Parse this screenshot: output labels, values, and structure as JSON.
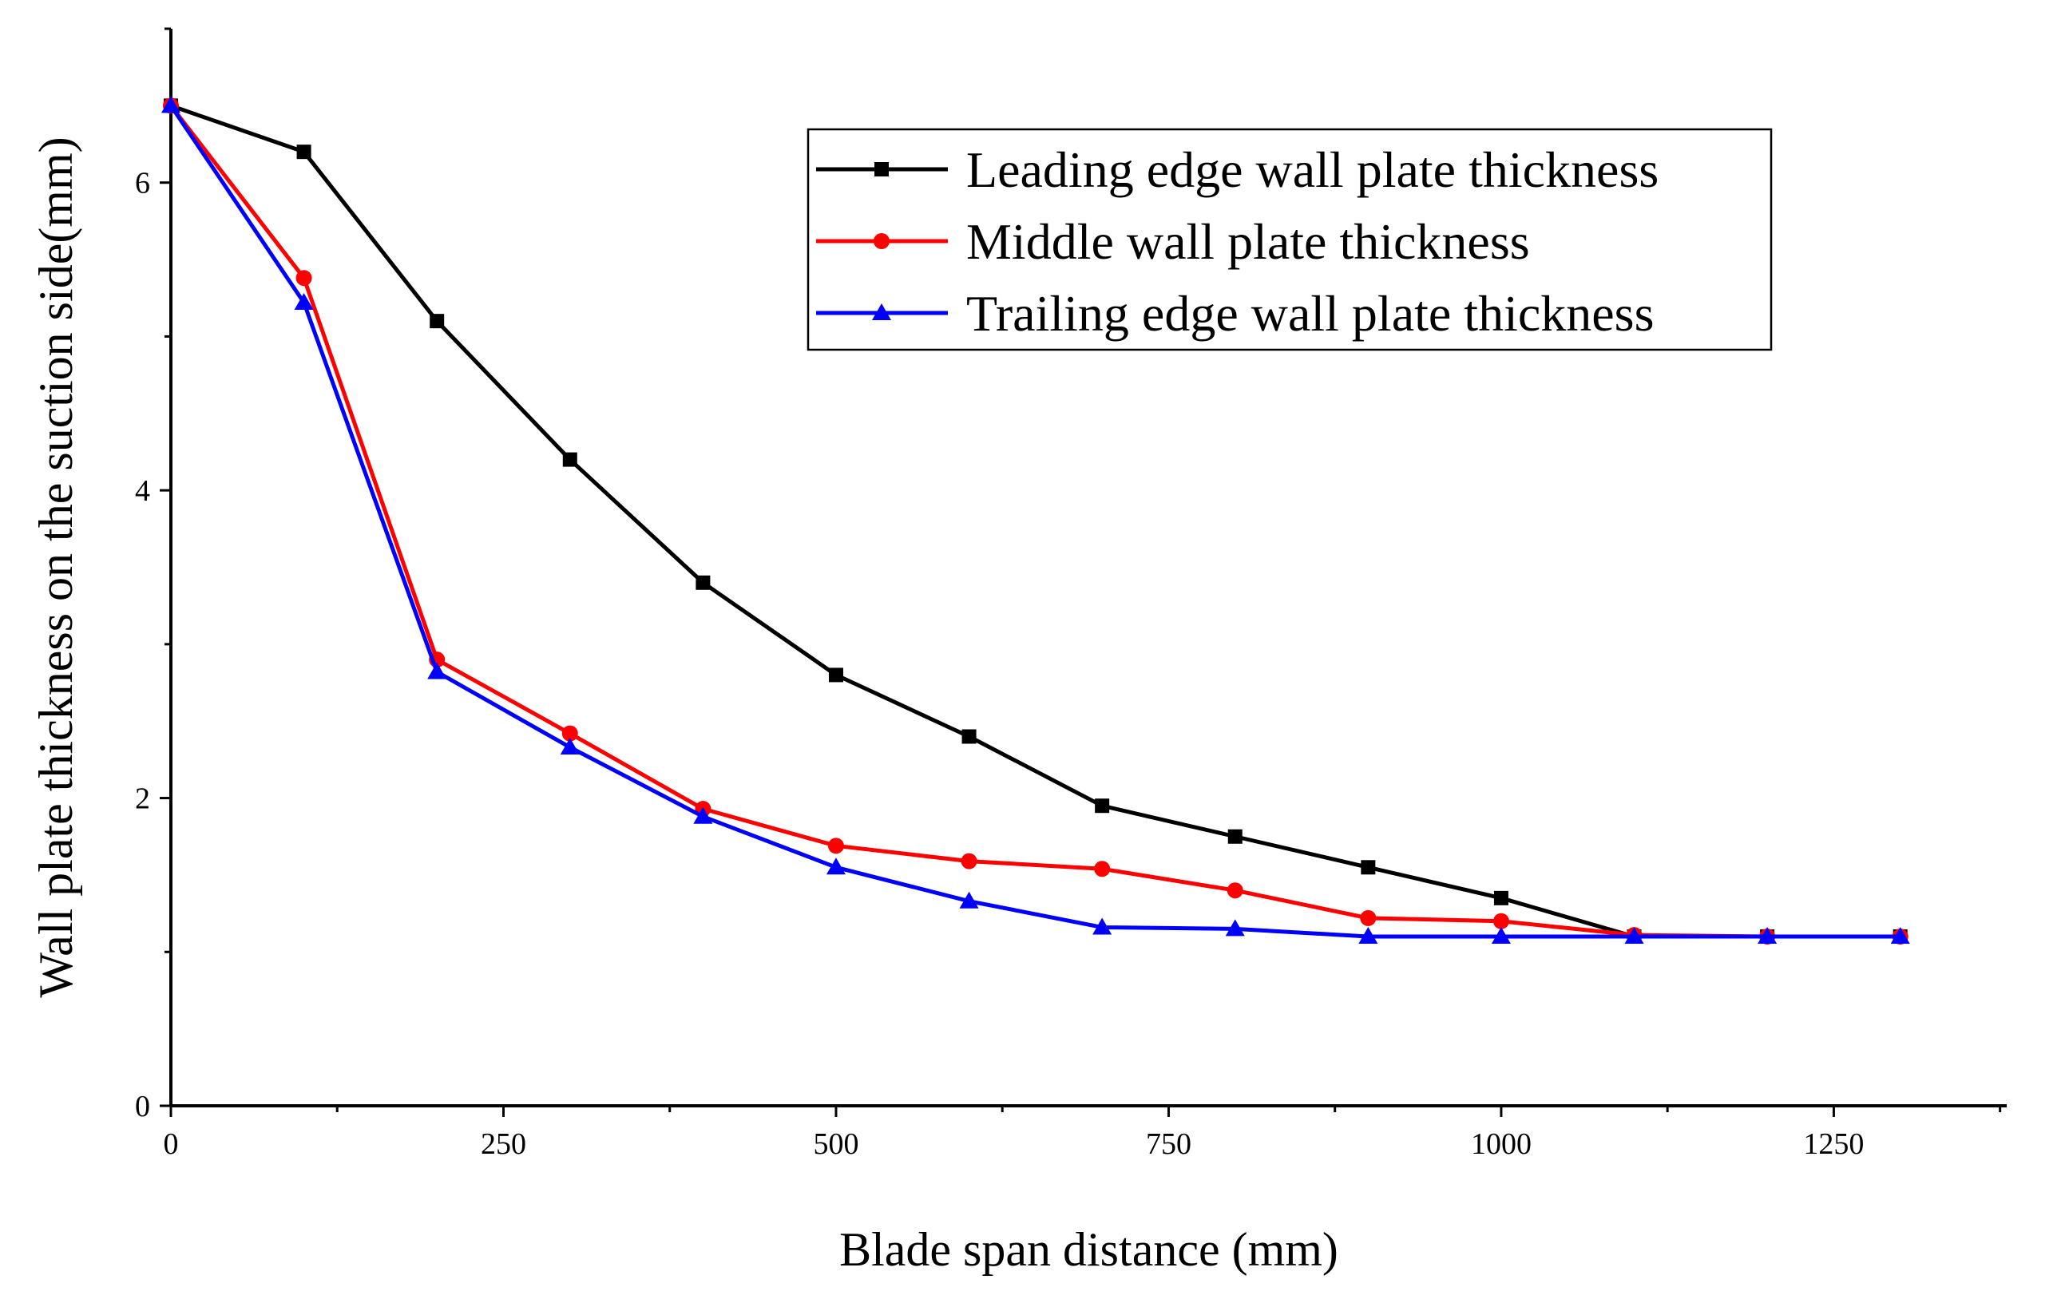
{
  "chart_data": {
    "type": "line",
    "title": "",
    "xlabel": "Blade span distance (mm)",
    "ylabel": "Wall plate thickness on the suction side(mm)",
    "xlim": [
      0,
      1380
    ],
    "ylim": [
      0,
      7
    ],
    "x_ticks": [
      "0",
      "250",
      "500",
      "750",
      "1000",
      "1250"
    ],
    "y_ticks": [
      "0",
      "2",
      "4",
      "6"
    ],
    "x_minor_step": 125,
    "y_minor_step": 1,
    "grid": false,
    "legend_position": "top-right",
    "x": [
      0,
      100,
      200,
      300,
      400,
      500,
      600,
      700,
      800,
      900,
      1000,
      1100,
      1200,
      1300
    ],
    "series": [
      {
        "name": "Leading edge wall plate thickness",
        "color": "#000000",
        "marker": "square",
        "values": [
          6.5,
          6.2,
          5.1,
          4.2,
          3.4,
          2.8,
          2.4,
          1.95,
          1.75,
          1.55,
          1.35,
          1.1,
          1.1,
          1.1
        ]
      },
      {
        "name": "Middle wall plate thickness",
        "color": "#ff0000",
        "marker": "circle",
        "values": [
          6.5,
          5.38,
          2.9,
          2.42,
          1.93,
          1.69,
          1.59,
          1.54,
          1.4,
          1.22,
          1.2,
          1.11,
          1.1,
          1.1
        ]
      },
      {
        "name": "Trailing edge wall plate thickness",
        "color": "#0000ff",
        "marker": "triangle",
        "values": [
          6.5,
          5.22,
          2.82,
          2.33,
          1.88,
          1.55,
          1.33,
          1.16,
          1.15,
          1.1,
          1.1,
          1.1,
          1.1,
          1.1
        ]
      }
    ]
  }
}
